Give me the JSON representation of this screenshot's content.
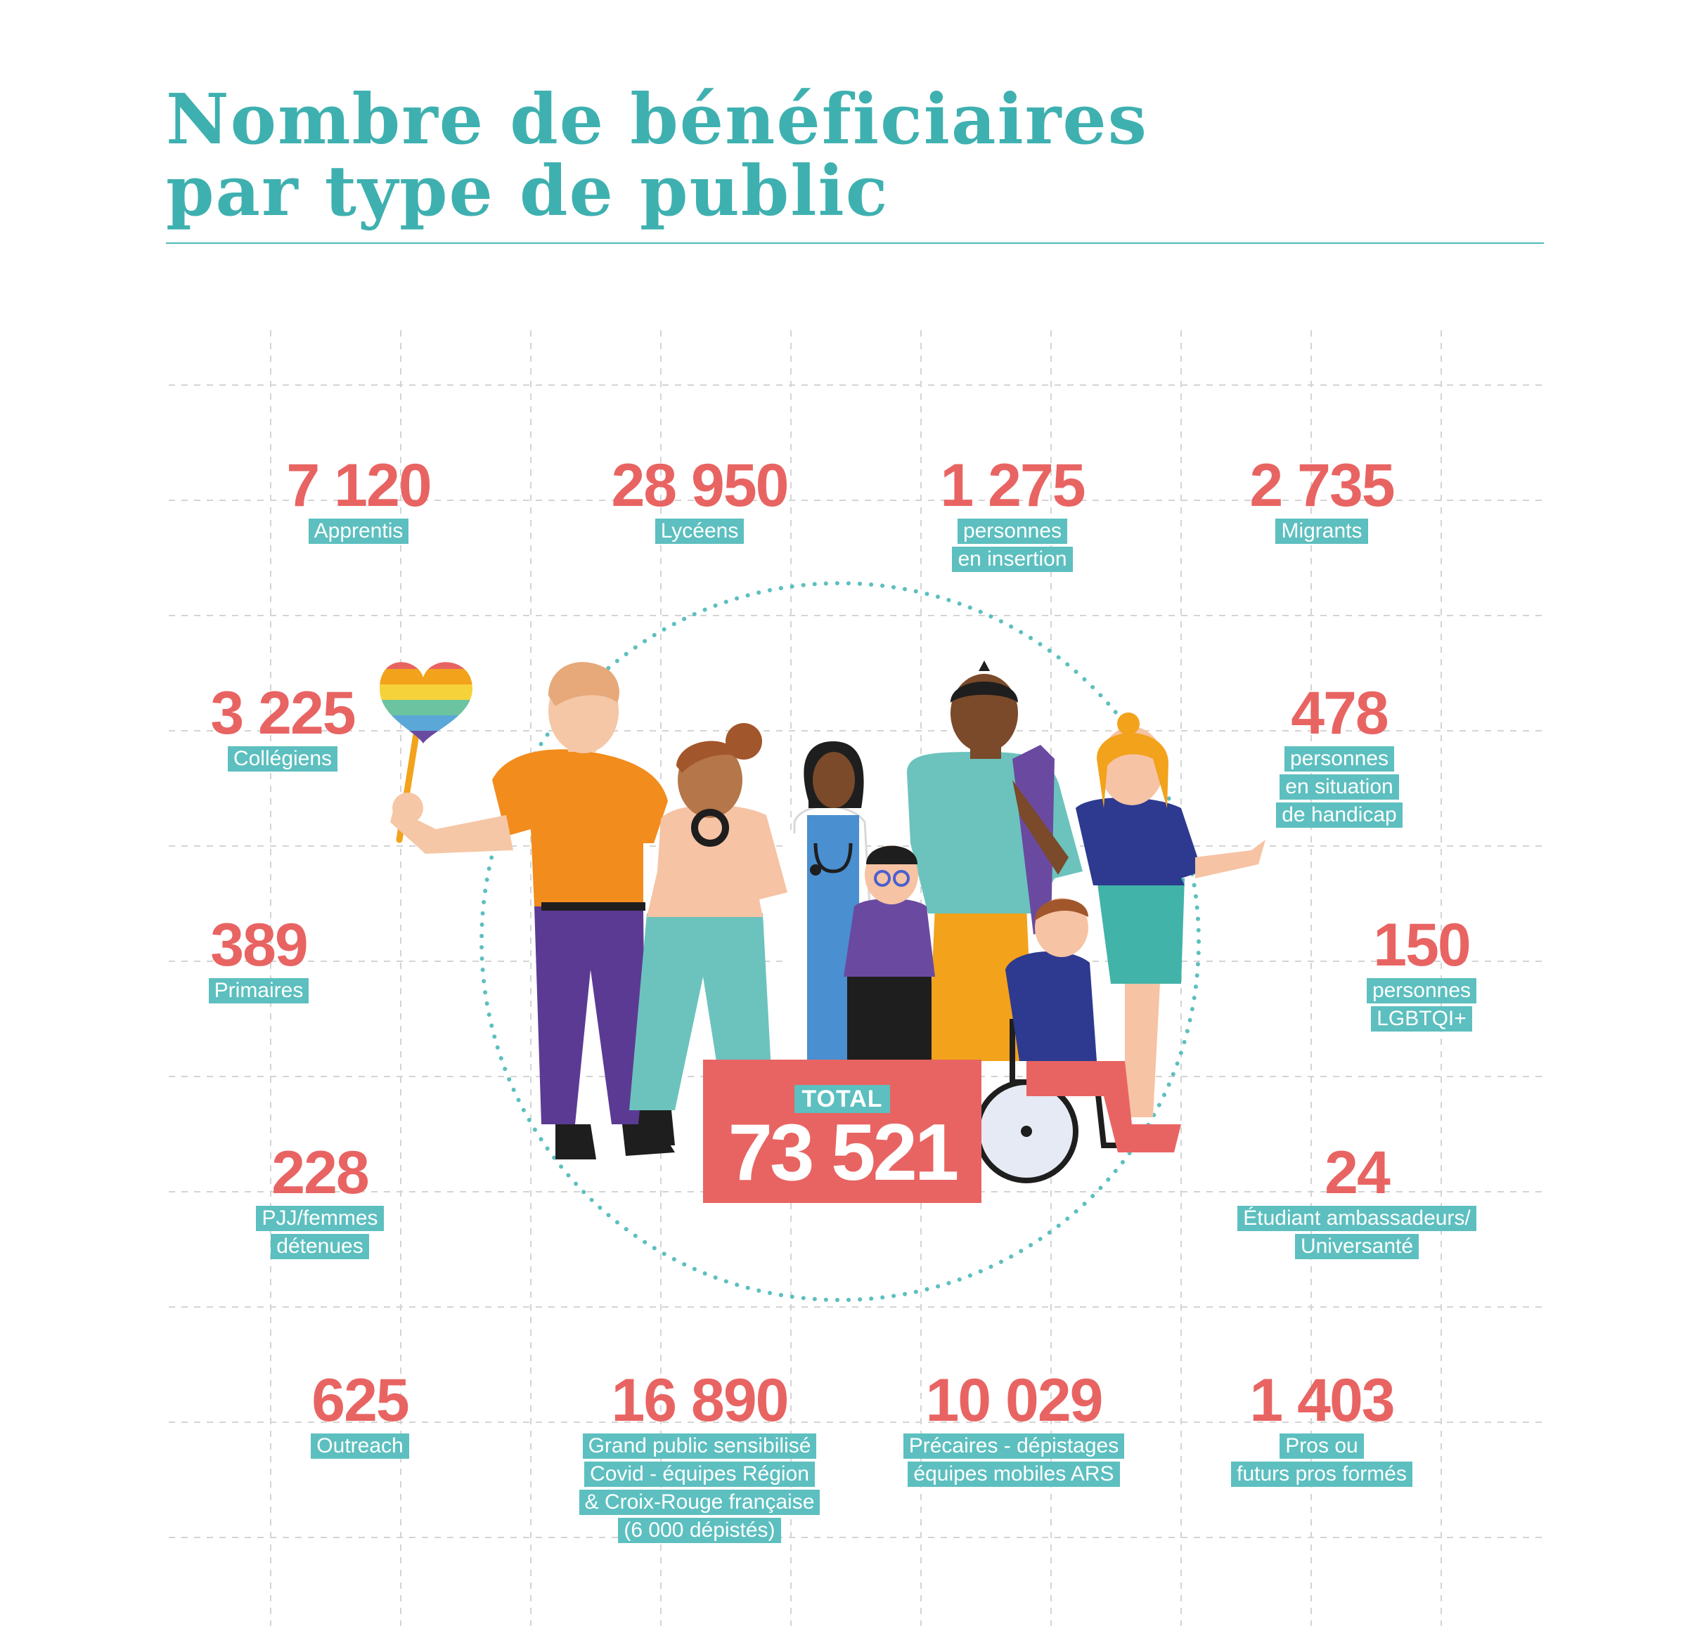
{
  "title": {
    "line1": "Nombre de bénéficiaires",
    "line2": "par type de public"
  },
  "total": {
    "label": "TOTAL",
    "value": "73 521"
  },
  "stats": [
    {
      "value": "7 120",
      "labels": [
        "Apprentis"
      ]
    },
    {
      "value": "28 950",
      "labels": [
        "Lycéens"
      ]
    },
    {
      "value": "1 275",
      "labels": [
        "personnes",
        "en insertion"
      ]
    },
    {
      "value": "2 735",
      "labels": [
        "Migrants"
      ]
    },
    {
      "value": "3 225",
      "labels": [
        "Collégiens"
      ]
    },
    {
      "value": "478",
      "labels": [
        "personnes",
        "en situation",
        "de handicap"
      ]
    },
    {
      "value": "389",
      "labels": [
        "Primaires"
      ]
    },
    {
      "value": "150",
      "labels": [
        "personnes",
        "LGBTQI+"
      ]
    },
    {
      "value": "228",
      "labels": [
        "PJJ/femmes",
        "détenues"
      ]
    },
    {
      "value": "24",
      "labels": [
        "Étudiant ambassadeurs/",
        "Universanté"
      ]
    },
    {
      "value": "625",
      "labels": [
        "Outreach"
      ]
    },
    {
      "value": "16 890",
      "labels": [
        "Grand public sensibilisé",
        "Covid - équipes Région",
        "& Croix-Rouge française",
        "(6 000 dépistés)"
      ]
    },
    {
      "value": "10 029",
      "labels": [
        "Précaires - dépistages",
        "équipes mobiles ARS"
      ]
    },
    {
      "value": "1 403",
      "labels": [
        "Pros ou",
        "futurs pros formés"
      ]
    }
  ],
  "colors": {
    "teal": "#5dbfbf",
    "title_teal": "#3fb0b0",
    "coral": "#e86462"
  },
  "illustration": "group-of-diverse-people"
}
